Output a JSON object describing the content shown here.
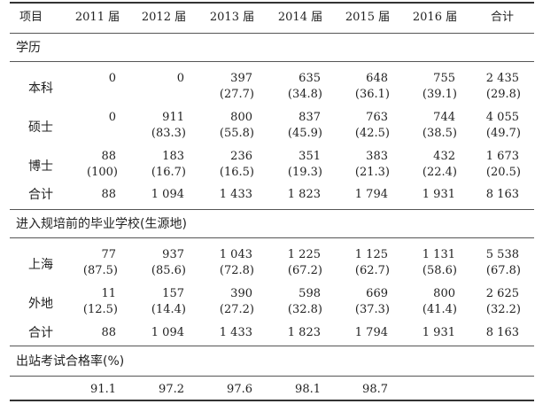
{
  "table": {
    "headers": [
      "项目",
      "2011 届",
      "2012 届",
      "2013 届",
      "2014 届",
      "2015 届",
      "2016 届",
      "合计"
    ],
    "sections": [
      {
        "title": "学历",
        "rows": [
          {
            "label": "本科",
            "values": [
              "0",
              "0",
              "397",
              "635",
              "648",
              "755",
              "2 435"
            ],
            "pcts": [
              "",
              "",
              "(27.7)",
              "(34.8)",
              "(36.1)",
              "(39.1)",
              "(29.8)"
            ]
          },
          {
            "label": "硕士",
            "values": [
              "0",
              "911",
              "800",
              "837",
              "763",
              "744",
              "4 055"
            ],
            "pcts": [
              "",
              "(83.3)",
              "(55.8)",
              "(45.9)",
              "(42.5)",
              "(38.5)",
              "(49.7)"
            ]
          },
          {
            "label": "博士",
            "values": [
              "88",
              "183",
              "236",
              "351",
              "383",
              "432",
              "1 673"
            ],
            "pcts": [
              "(100)",
              "(16.7)",
              "(16.5)",
              "(19.3)",
              "(21.3)",
              "(22.4)",
              "(20.5)"
            ]
          },
          {
            "label": "合计",
            "values": [
              "88",
              "1 094",
              "1 433",
              "1 823",
              "1 794",
              "1 931",
              "8 163"
            ],
            "pcts": [
              "",
              "",
              "",
              "",
              "",
              "",
              ""
            ]
          }
        ]
      },
      {
        "title": "进入规培前的毕业学校(生源地)",
        "rows": [
          {
            "label": "上海",
            "values": [
              "77",
              "937",
              "1 043",
              "1 225",
              "1 125",
              "1 131",
              "5 538"
            ],
            "pcts": [
              "(87.5)",
              "(85.6)",
              "(72.8)",
              "(67.2)",
              "(62.7)",
              "(58.6)",
              "(67.8)"
            ]
          },
          {
            "label": "外地",
            "values": [
              "11",
              "157",
              "390",
              "598",
              "669",
              "800",
              "2 625"
            ],
            "pcts": [
              "(12.5)",
              "(14.4)",
              "(27.2)",
              "(32.8)",
              "(37.3)",
              "(41.4)",
              "(32.2)"
            ]
          },
          {
            "label": "合计",
            "values": [
              "88",
              "1 094",
              "1 433",
              "1 823",
              "1 794",
              "1 931",
              "8 163"
            ],
            "pcts": [
              "",
              "",
              "",
              "",
              "",
              "",
              ""
            ]
          }
        ]
      },
      {
        "title": "出站考试合格率(%)",
        "rows": [
          {
            "label": "",
            "values": [
              "91.1",
              "97.2",
              "97.6",
              "98.1",
              "98.7",
              "",
              ""
            ],
            "pcts": [
              "",
              "",
              "",
              "",
              "",
              "",
              ""
            ]
          }
        ]
      }
    ]
  }
}
